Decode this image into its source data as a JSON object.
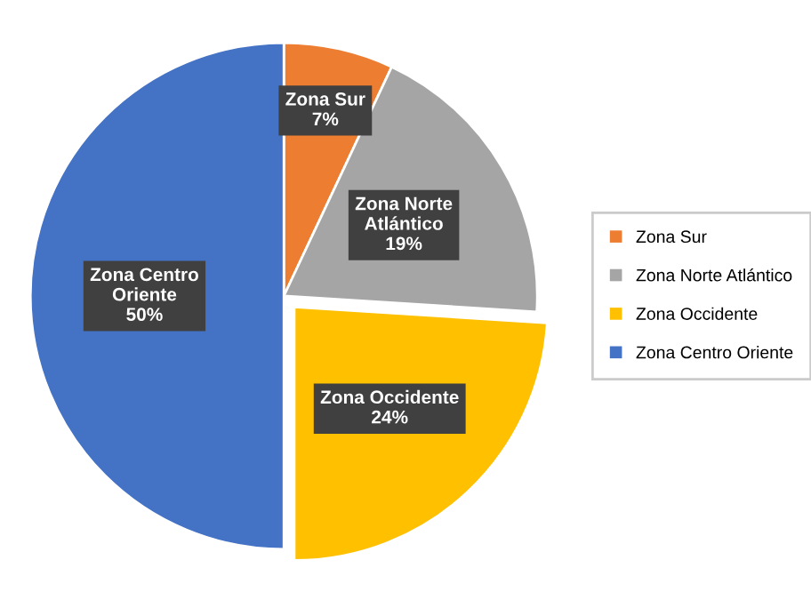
{
  "chart_data": {
    "type": "pie",
    "categories": [
      "Zona Sur",
      "Zona Norte Atlántico",
      "Zona Occidente",
      "Zona Centro Oriente"
    ],
    "values": [
      7,
      19,
      24,
      50
    ],
    "colors": [
      "#ed7d31",
      "#a5a5a5",
      "#ffc000",
      "#4472c4"
    ],
    "value_labels": [
      "7%",
      "19%",
      "24%",
      "50%"
    ],
    "legend": "right"
  }
}
